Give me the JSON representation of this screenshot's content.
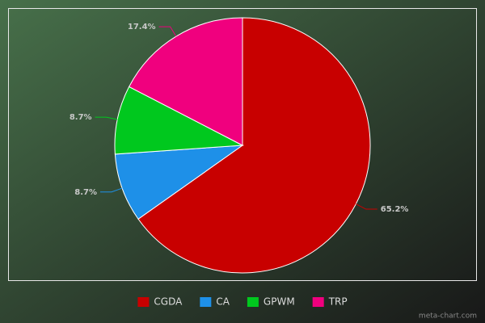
{
  "chart_data": {
    "type": "pie",
    "categories": [
      "CGDA",
      "CA",
      "GPWM",
      "TRP"
    ],
    "values": [
      65.2,
      8.7,
      8.7,
      17.4
    ],
    "value_labels": [
      "65.2%",
      "8.7%",
      "8.7%",
      "17.4%"
    ],
    "colors": [
      "#c80000",
      "#1e90e8",
      "#00c81e",
      "#f0007e"
    ],
    "legend": "bottom"
  },
  "watermark": "meta-chart.com"
}
